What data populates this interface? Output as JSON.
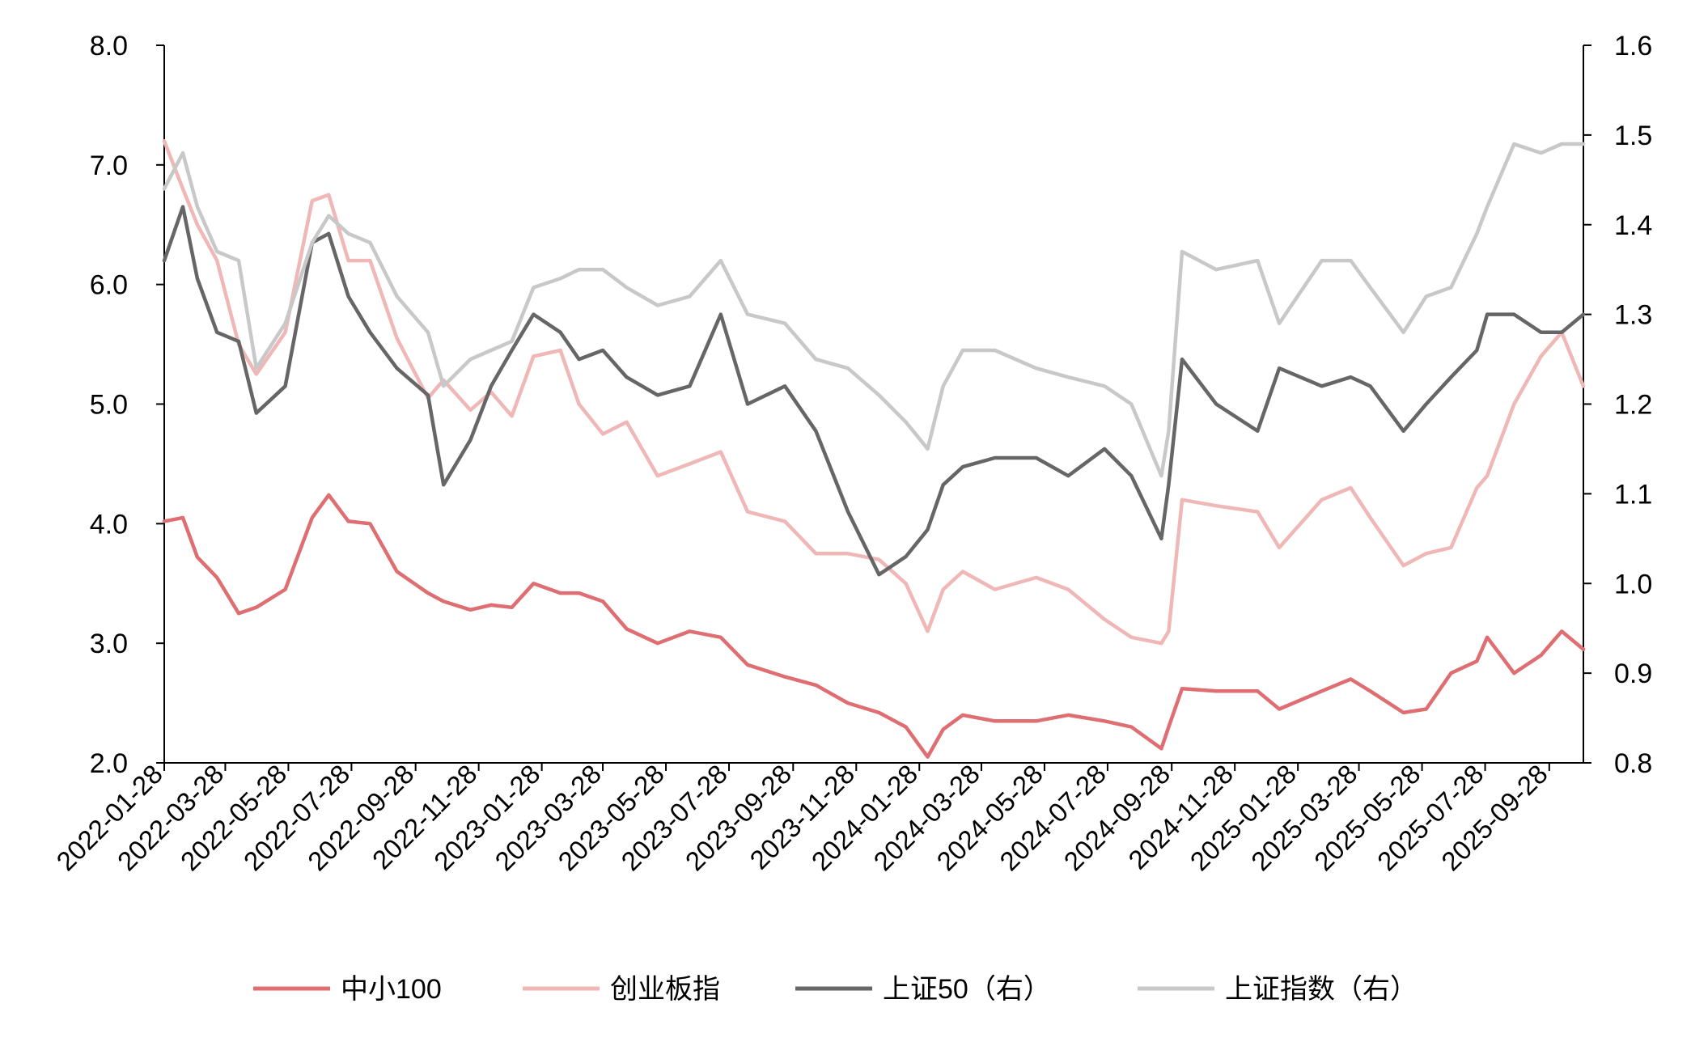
{
  "chart_data": {
    "type": "line",
    "title": "",
    "xlabel": "",
    "ylabel_left": "",
    "ylabel_right": "",
    "ylim_left": [
      2.0,
      8.0
    ],
    "ylim_right": [
      0.8,
      1.6
    ],
    "left_ticks": [
      "8.0",
      "7.0",
      "6.0",
      "5.0",
      "4.0",
      "3.0",
      "2.0"
    ],
    "right_ticks": [
      "1.6",
      "1.5",
      "1.4",
      "1.3",
      "1.2",
      "1.1",
      "1.0",
      "0.9",
      "0.8"
    ],
    "x_range": [
      "2022-01-28",
      "2025-10-31"
    ],
    "x_ticks": [
      "2022-01-28",
      "2022-03-28",
      "2022-05-28",
      "2022-07-28",
      "2022-09-28",
      "2022-11-28",
      "2023-01-28",
      "2023-03-28",
      "2023-05-28",
      "2023-07-28",
      "2023-09-28",
      "2023-11-28",
      "2024-01-28",
      "2024-03-28",
      "2024-05-28",
      "2024-07-28",
      "2024-09-28",
      "2024-11-28",
      "2025-01-28",
      "2025-03-28",
      "2025-05-28",
      "2025-07-28",
      "2025-09-28"
    ],
    "grid": false,
    "legend_position": "bottom",
    "series": [
      {
        "name": "中小100",
        "axis": "left",
        "color": "#de6e72",
        "x": [
          "2022-01-28",
          "2022-02-15",
          "2022-03-01",
          "2022-03-20",
          "2022-04-10",
          "2022-04-27",
          "2022-05-25",
          "2022-06-20",
          "2022-07-06",
          "2022-07-25",
          "2022-08-15",
          "2022-09-10",
          "2022-10-10",
          "2022-10-25",
          "2022-11-20",
          "2022-12-10",
          "2022-12-30",
          "2023-01-20",
          "2023-02-15",
          "2023-03-05",
          "2023-03-28",
          "2023-04-20",
          "2023-05-20",
          "2023-06-20",
          "2023-07-20",
          "2023-08-15",
          "2023-09-20",
          "2023-10-20",
          "2023-11-20",
          "2023-12-20",
          "2024-01-15",
          "2024-02-05",
          "2024-02-20",
          "2024-03-10",
          "2024-04-10",
          "2024-05-20",
          "2024-06-20",
          "2024-07-25",
          "2024-08-20",
          "2024-09-18",
          "2024-09-25",
          "2024-10-08",
          "2024-11-10",
          "2024-12-20",
          "2025-01-10",
          "2025-02-20",
          "2025-03-20",
          "2025-04-08",
          "2025-05-10",
          "2025-06-01",
          "2025-06-25",
          "2025-07-20",
          "2025-07-30",
          "2025-08-25",
          "2025-09-20",
          "2025-10-10",
          "2025-10-31"
        ],
        "values": [
          4.02,
          4.05,
          3.72,
          3.55,
          3.25,
          3.3,
          3.45,
          4.05,
          4.24,
          4.02,
          4.0,
          3.6,
          3.42,
          3.35,
          3.28,
          3.32,
          3.3,
          3.5,
          3.42,
          3.42,
          3.35,
          3.12,
          3.0,
          3.1,
          3.05,
          2.82,
          2.72,
          2.65,
          2.5,
          2.42,
          2.3,
          2.05,
          2.28,
          2.4,
          2.35,
          2.35,
          2.4,
          2.35,
          2.3,
          2.12,
          2.3,
          2.62,
          2.6,
          2.6,
          2.45,
          2.6,
          2.7,
          2.6,
          2.42,
          2.45,
          2.75,
          2.85,
          3.05,
          2.75,
          2.9,
          3.1,
          2.95
        ]
      },
      {
        "name": "创业板指",
        "axis": "left",
        "color": "#f0b7b7",
        "x": [
          "2022-01-28",
          "2022-02-15",
          "2022-03-01",
          "2022-03-20",
          "2022-04-10",
          "2022-04-27",
          "2022-05-25",
          "2022-06-20",
          "2022-07-06",
          "2022-07-25",
          "2022-08-15",
          "2022-09-10",
          "2022-10-10",
          "2022-10-25",
          "2022-11-20",
          "2022-12-10",
          "2022-12-30",
          "2023-01-20",
          "2023-02-15",
          "2023-03-05",
          "2023-03-28",
          "2023-04-20",
          "2023-05-20",
          "2023-06-20",
          "2023-07-20",
          "2023-08-15",
          "2023-09-20",
          "2023-10-20",
          "2023-11-20",
          "2023-12-20",
          "2024-01-15",
          "2024-02-05",
          "2024-02-20",
          "2024-03-10",
          "2024-04-10",
          "2024-05-20",
          "2024-06-20",
          "2024-07-25",
          "2024-08-20",
          "2024-09-18",
          "2024-09-25",
          "2024-10-08",
          "2024-11-10",
          "2024-12-20",
          "2025-01-10",
          "2025-02-20",
          "2025-03-20",
          "2025-04-08",
          "2025-05-10",
          "2025-06-01",
          "2025-06-25",
          "2025-07-20",
          "2025-07-30",
          "2025-08-25",
          "2025-09-20",
          "2025-10-10",
          "2025-10-31"
        ],
        "values": [
          7.2,
          6.8,
          6.5,
          6.2,
          5.5,
          5.25,
          5.6,
          6.7,
          6.75,
          6.2,
          6.2,
          5.55,
          5.05,
          5.2,
          4.95,
          5.1,
          4.9,
          5.4,
          5.45,
          5.0,
          4.75,
          4.85,
          4.4,
          4.5,
          4.6,
          4.1,
          4.02,
          3.75,
          3.75,
          3.7,
          3.5,
          3.1,
          3.45,
          3.6,
          3.45,
          3.55,
          3.45,
          3.2,
          3.05,
          3.0,
          3.1,
          4.2,
          4.15,
          4.1,
          3.8,
          4.2,
          4.3,
          4.05,
          3.65,
          3.75,
          3.8,
          4.3,
          4.4,
          5.0,
          5.4,
          5.6,
          5.15
        ]
      },
      {
        "name": "上证50（右）",
        "axis": "right",
        "color": "#666666",
        "x": [
          "2022-01-28",
          "2022-02-15",
          "2022-03-01",
          "2022-03-20",
          "2022-04-10",
          "2022-04-27",
          "2022-05-25",
          "2022-06-20",
          "2022-07-06",
          "2022-07-25",
          "2022-08-15",
          "2022-09-10",
          "2022-10-10",
          "2022-10-25",
          "2022-11-20",
          "2022-12-10",
          "2022-12-30",
          "2023-01-20",
          "2023-02-15",
          "2023-03-05",
          "2023-03-28",
          "2023-04-20",
          "2023-05-20",
          "2023-06-20",
          "2023-07-20",
          "2023-08-15",
          "2023-09-20",
          "2023-10-20",
          "2023-11-20",
          "2023-12-20",
          "2024-01-15",
          "2024-02-05",
          "2024-02-20",
          "2024-03-10",
          "2024-04-10",
          "2024-05-20",
          "2024-06-20",
          "2024-07-25",
          "2024-08-20",
          "2024-09-18",
          "2024-09-25",
          "2024-10-08",
          "2024-11-10",
          "2024-12-20",
          "2025-01-10",
          "2025-02-20",
          "2025-03-20",
          "2025-04-08",
          "2025-05-10",
          "2025-06-01",
          "2025-06-25",
          "2025-07-20",
          "2025-07-30",
          "2025-08-25",
          "2025-09-20",
          "2025-10-10",
          "2025-10-31"
        ],
        "values": [
          1.36,
          1.42,
          1.34,
          1.28,
          1.27,
          1.19,
          1.22,
          1.38,
          1.39,
          1.32,
          1.28,
          1.24,
          1.21,
          1.11,
          1.16,
          1.22,
          1.26,
          1.3,
          1.28,
          1.25,
          1.26,
          1.23,
          1.21,
          1.22,
          1.3,
          1.2,
          1.22,
          1.17,
          1.08,
          1.01,
          1.03,
          1.06,
          1.11,
          1.13,
          1.14,
          1.14,
          1.12,
          1.15,
          1.12,
          1.05,
          1.11,
          1.25,
          1.2,
          1.17,
          1.24,
          1.22,
          1.23,
          1.22,
          1.17,
          1.2,
          1.23,
          1.26,
          1.3,
          1.3,
          1.28,
          1.28,
          1.3
        ]
      },
      {
        "name": "上证指数（右）",
        "axis": "right",
        "color": "#c8c8c8",
        "x": [
          "2022-01-28",
          "2022-02-15",
          "2022-03-01",
          "2022-03-20",
          "2022-04-10",
          "2022-04-27",
          "2022-05-25",
          "2022-06-20",
          "2022-07-06",
          "2022-07-25",
          "2022-08-15",
          "2022-09-10",
          "2022-10-10",
          "2022-10-25",
          "2022-11-20",
          "2022-12-10",
          "2022-12-30",
          "2023-01-20",
          "2023-02-15",
          "2023-03-05",
          "2023-03-28",
          "2023-04-20",
          "2023-05-20",
          "2023-06-20",
          "2023-07-20",
          "2023-08-15",
          "2023-09-20",
          "2023-10-20",
          "2023-11-20",
          "2023-12-20",
          "2024-01-15",
          "2024-02-05",
          "2024-02-20",
          "2024-03-10",
          "2024-04-10",
          "2024-05-20",
          "2024-06-20",
          "2024-07-25",
          "2024-08-20",
          "2024-09-18",
          "2024-09-25",
          "2024-10-08",
          "2024-11-10",
          "2024-12-20",
          "2025-01-10",
          "2025-02-20",
          "2025-03-20",
          "2025-04-08",
          "2025-05-10",
          "2025-06-01",
          "2025-06-25",
          "2025-07-20",
          "2025-07-30",
          "2025-08-25",
          "2025-09-20",
          "2025-10-10",
          "2025-10-31"
        ],
        "values": [
          1.44,
          1.48,
          1.42,
          1.37,
          1.36,
          1.24,
          1.29,
          1.38,
          1.41,
          1.39,
          1.38,
          1.32,
          1.28,
          1.22,
          1.25,
          1.26,
          1.27,
          1.33,
          1.34,
          1.35,
          1.35,
          1.33,
          1.31,
          1.32,
          1.36,
          1.3,
          1.29,
          1.25,
          1.24,
          1.21,
          1.18,
          1.15,
          1.22,
          1.26,
          1.26,
          1.24,
          1.23,
          1.22,
          1.2,
          1.12,
          1.17,
          1.37,
          1.35,
          1.36,
          1.29,
          1.36,
          1.36,
          1.33,
          1.28,
          1.32,
          1.33,
          1.39,
          1.42,
          1.49,
          1.48,
          1.49,
          1.49
        ]
      }
    ]
  }
}
